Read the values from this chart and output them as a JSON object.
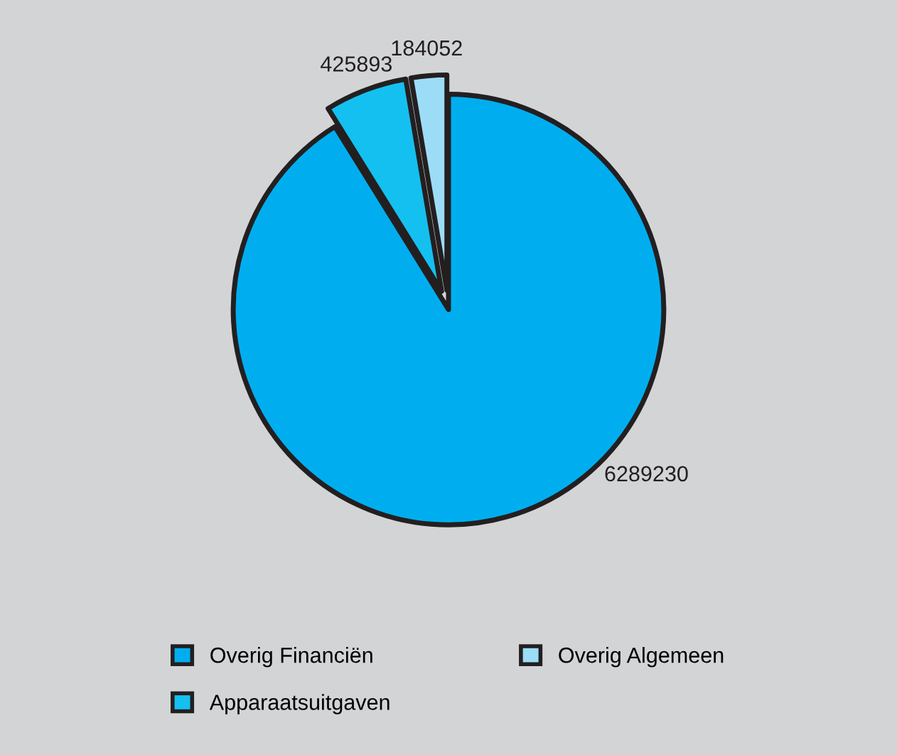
{
  "chart_data": {
    "type": "pie",
    "categories": [
      "Overig Financiën",
      "Apparaatsuitgaven",
      "Overig Algemeen"
    ],
    "values": [
      6289230,
      425893,
      184052
    ],
    "colors": [
      "#00aeef",
      "#14c0f0",
      "#9ddcf7"
    ],
    "data_labels": true,
    "legend": "bottom"
  }
}
